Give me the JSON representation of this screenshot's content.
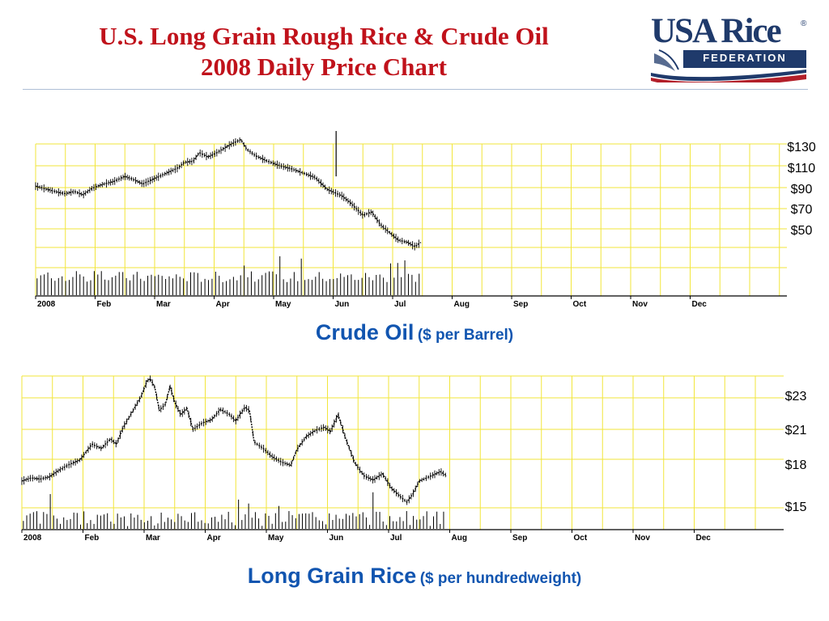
{
  "title": {
    "line1": "U.S. Long Grain Rough Rice & Crude Oil",
    "line2": "2008 Daily Price Chart"
  },
  "logo": {
    "wordmark": "USA Rice",
    "registered": "®",
    "subtitle": "FEDERATION"
  },
  "colors": {
    "title": "#c0121b",
    "caption": "#1155b0",
    "grid": "#f2e63a",
    "logo_navy": "#1f3a6b",
    "logo_red": "#b3202a"
  },
  "captions": {
    "oil_main": "Crude Oil",
    "oil_unit": "($ per Barrel)",
    "rice_main": "Long Grain Rice",
    "rice_unit": "($ per hundredweight)"
  },
  "chart_data": [
    {
      "type": "line",
      "name": "crude-oil",
      "month_labels": [
        "2008",
        "Feb",
        "Mar",
        "Apr",
        "May",
        "Jun",
        "Jul",
        "Aug",
        "Sep",
        "Oct",
        "Nov",
        "Dec"
      ],
      "y_tick_labels": [
        "$130",
        "$110",
        "$90",
        "$70",
        "$50"
      ],
      "y_ticks": [
        130,
        110,
        90,
        70,
        50
      ],
      "ylim": [
        40,
        147
      ],
      "grid": true,
      "price_points": [
        {
          "x": 0,
          "y": 96
        },
        {
          "x": 0.4,
          "y": 93
        },
        {
          "x": 0.8,
          "y": 90
        },
        {
          "x": 1.0,
          "y": 89
        },
        {
          "x": 1.3,
          "y": 91
        },
        {
          "x": 1.6,
          "y": 88
        },
        {
          "x": 1.9,
          "y": 94
        },
        {
          "x": 2.3,
          "y": 98
        },
        {
          "x": 2.6,
          "y": 100
        },
        {
          "x": 3.0,
          "y": 105
        },
        {
          "x": 3.3,
          "y": 102
        },
        {
          "x": 3.6,
          "y": 98
        },
        {
          "x": 4.0,
          "y": 103
        },
        {
          "x": 4.4,
          "y": 108
        },
        {
          "x": 4.8,
          "y": 113
        },
        {
          "x": 5.0,
          "y": 118
        },
        {
          "x": 5.3,
          "y": 119
        },
        {
          "x": 5.5,
          "y": 127
        },
        {
          "x": 5.8,
          "y": 123
        },
        {
          "x": 6.1,
          "y": 127
        },
        {
          "x": 6.4,
          "y": 132
        },
        {
          "x": 6.65,
          "y": 136
        },
        {
          "x": 6.9,
          "y": 139
        },
        {
          "x": 7.1,
          "y": 130
        },
        {
          "x": 7.4,
          "y": 124
        },
        {
          "x": 7.8,
          "y": 119
        },
        {
          "x": 8.2,
          "y": 115
        },
        {
          "x": 8.6,
          "y": 112
        },
        {
          "x": 9.0,
          "y": 108
        },
        {
          "x": 9.4,
          "y": 104
        },
        {
          "x": 9.8,
          "y": 93
        },
        {
          "x": 10.3,
          "y": 87
        },
        {
          "x": 10.6,
          "y": 80
        },
        {
          "x": 11.0,
          "y": 69
        },
        {
          "x": 11.3,
          "y": 72
        },
        {
          "x": 11.6,
          "y": 60
        },
        {
          "x": 11.9,
          "y": 53
        },
        {
          "x": 12.2,
          "y": 46
        },
        {
          "x": 12.5,
          "y": 44
        },
        {
          "x": 12.75,
          "y": 40
        },
        {
          "x": 12.95,
          "y": 44
        }
      ],
      "spike": {
        "x": 10.1,
        "high": 147,
        "low": 105
      }
    },
    {
      "type": "line",
      "name": "long-grain-rice",
      "month_labels": [
        "2008",
        "Feb",
        "Mar",
        "Apr",
        "May",
        "Jun",
        "Jul",
        "Aug",
        "Sep",
        "Oct",
        "Nov",
        "Dec"
      ],
      "y_tick_labels": [
        "$23",
        "$21",
        "$18",
        "$15"
      ],
      "y_ticks": [
        23,
        21,
        18,
        15
      ],
      "ylim": [
        14.5,
        25
      ],
      "grid": true,
      "price_points": [
        {
          "x": 0,
          "y": 14.5
        },
        {
          "x": 0.3,
          "y": 14.8
        },
        {
          "x": 0.6,
          "y": 14.7
        },
        {
          "x": 0.9,
          "y": 14.9
        },
        {
          "x": 1.2,
          "y": 15.5
        },
        {
          "x": 1.5,
          "y": 16.0
        },
        {
          "x": 1.9,
          "y": 16.5
        },
        {
          "x": 2.3,
          "y": 18.0
        },
        {
          "x": 2.6,
          "y": 17.6
        },
        {
          "x": 2.9,
          "y": 18.5
        },
        {
          "x": 3.1,
          "y": 18.0
        },
        {
          "x": 3.3,
          "y": 19.5
        },
        {
          "x": 3.6,
          "y": 21.0
        },
        {
          "x": 3.9,
          "y": 22.5
        },
        {
          "x": 4.1,
          "y": 24.0
        },
        {
          "x": 4.2,
          "y": 24.2
        },
        {
          "x": 4.35,
          "y": 23.4
        },
        {
          "x": 4.5,
          "y": 21.2
        },
        {
          "x": 4.7,
          "y": 21.8
        },
        {
          "x": 4.85,
          "y": 23.5
        },
        {
          "x": 5.0,
          "y": 22.0
        },
        {
          "x": 5.2,
          "y": 20.8
        },
        {
          "x": 5.4,
          "y": 21.4
        },
        {
          "x": 5.6,
          "y": 19.4
        },
        {
          "x": 5.9,
          "y": 20.0
        },
        {
          "x": 6.2,
          "y": 20.3
        },
        {
          "x": 6.5,
          "y": 21.3
        },
        {
          "x": 6.8,
          "y": 20.8
        },
        {
          "x": 7.0,
          "y": 20.2
        },
        {
          "x": 7.3,
          "y": 21.5
        },
        {
          "x": 7.45,
          "y": 21.2
        },
        {
          "x": 7.6,
          "y": 18.2
        },
        {
          "x": 7.9,
          "y": 17.6
        },
        {
          "x": 8.2,
          "y": 16.8
        },
        {
          "x": 8.5,
          "y": 16.3
        },
        {
          "x": 8.8,
          "y": 16.0
        },
        {
          "x": 9.0,
          "y": 17.5
        },
        {
          "x": 9.3,
          "y": 18.7
        },
        {
          "x": 9.6,
          "y": 19.3
        },
        {
          "x": 9.9,
          "y": 19.6
        },
        {
          "x": 10.1,
          "y": 19.2
        },
        {
          "x": 10.35,
          "y": 20.8
        },
        {
          "x": 10.6,
          "y": 18.5
        },
        {
          "x": 10.9,
          "y": 16.2
        },
        {
          "x": 11.2,
          "y": 15.0
        },
        {
          "x": 11.5,
          "y": 14.6
        },
        {
          "x": 11.8,
          "y": 15.2
        },
        {
          "x": 12.1,
          "y": 13.8
        },
        {
          "x": 12.4,
          "y": 13.0
        },
        {
          "x": 12.6,
          "y": 12.5
        },
        {
          "x": 12.8,
          "y": 13.3
        },
        {
          "x": 13.0,
          "y": 14.5
        },
        {
          "x": 13.4,
          "y": 15.0
        },
        {
          "x": 13.7,
          "y": 15.4
        },
        {
          "x": 13.9,
          "y": 15.0
        }
      ]
    }
  ]
}
